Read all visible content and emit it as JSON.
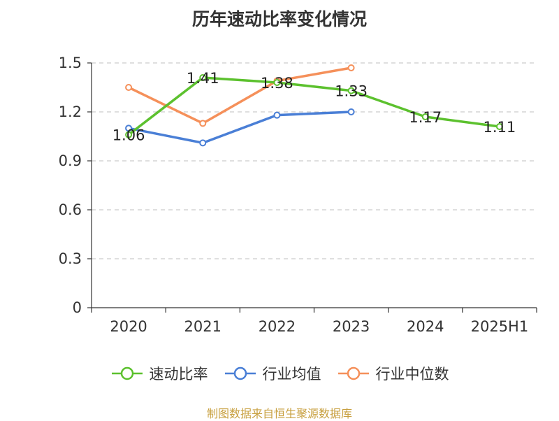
{
  "title": "历年速动比率变化情况",
  "source": "制图数据来自恒生聚源数据库",
  "chart_data": {
    "type": "line",
    "categories": [
      "2020",
      "2021",
      "2022",
      "2023",
      "2024",
      "2025H1"
    ],
    "y_ticks": [
      "0",
      "0.3",
      "0.6",
      "0.9",
      "1.2",
      "1.5"
    ],
    "ylim": [
      0,
      1.5
    ],
    "grid": true,
    "legend_position": "bottom",
    "series": [
      {
        "name": "速动比率",
        "color": "#5cc12e",
        "values": [
          1.06,
          1.41,
          1.38,
          1.33,
          1.17,
          1.11
        ],
        "labels": [
          "1.06",
          "1.41",
          "1.38",
          "1.33",
          "1.17",
          "1.11"
        ]
      },
      {
        "name": "行业均值",
        "color": "#4a7fd6",
        "values": [
          1.1,
          1.01,
          1.18,
          1.2,
          null,
          null
        ]
      },
      {
        "name": "行业中位数",
        "color": "#f5905a",
        "values": [
          1.35,
          1.13,
          1.39,
          1.47,
          null,
          null
        ]
      }
    ]
  }
}
